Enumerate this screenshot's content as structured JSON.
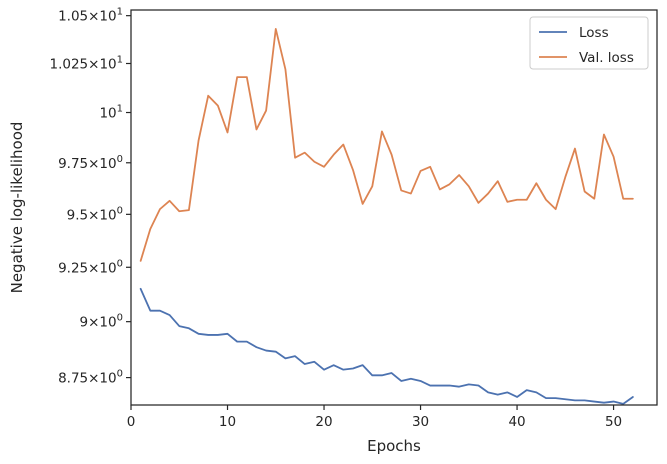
{
  "chart_data": {
    "type": "line",
    "xlabel": "Epochs",
    "ylabel": "Negative log-likelihood",
    "xlim": [
      0,
      54.5
    ],
    "ylim": [
      8.63,
      10.53
    ],
    "y_scale": "log",
    "grid": false,
    "legend_position": "top-right",
    "x_ticks": [
      0,
      10,
      20,
      30,
      40,
      50
    ],
    "y_ticks": [
      {
        "value": 8.75,
        "mantissa": "8.75",
        "times": "×",
        "base": "10",
        "exp": "0"
      },
      {
        "value": 9.0,
        "mantissa": "9",
        "times": "×",
        "base": "10",
        "exp": "0"
      },
      {
        "value": 9.25,
        "mantissa": "9.25",
        "times": "×",
        "base": "10",
        "exp": "0"
      },
      {
        "value": 9.5,
        "mantissa": "9.5",
        "times": "×",
        "base": "10",
        "exp": "0"
      },
      {
        "value": 9.75,
        "mantissa": "9.75",
        "times": "×",
        "base": "10",
        "exp": "0"
      },
      {
        "value": 10.0,
        "mantissa": "",
        "times": "",
        "base": "10",
        "exp": "1"
      },
      {
        "value": 10.25,
        "mantissa": "1.025",
        "times": "×",
        "base": "10",
        "exp": "1"
      },
      {
        "value": 10.5,
        "mantissa": "1.05",
        "times": "×",
        "base": "10",
        "exp": "1"
      }
    ],
    "x": [
      1,
      2,
      3,
      4,
      5,
      6,
      7,
      8,
      9,
      10,
      11,
      12,
      13,
      14,
      15,
      16,
      17,
      18,
      19,
      20,
      21,
      22,
      23,
      24,
      25,
      26,
      27,
      28,
      29,
      30,
      31,
      32,
      33,
      34,
      35,
      36,
      37,
      38,
      39,
      40,
      41,
      42,
      43,
      44,
      45,
      46,
      47,
      48,
      49,
      50,
      51,
      52
    ],
    "series": [
      {
        "name": "Loss",
        "color": "#4c72b0",
        "values": [
          9.15,
          9.05,
          9.05,
          9.03,
          8.98,
          8.97,
          8.945,
          8.94,
          8.94,
          8.945,
          8.91,
          8.91,
          8.885,
          8.87,
          8.865,
          8.835,
          8.845,
          8.81,
          8.82,
          8.785,
          8.805,
          8.785,
          8.79,
          8.805,
          8.76,
          8.76,
          8.77,
          8.735,
          8.745,
          8.735,
          8.715,
          8.715,
          8.715,
          8.71,
          8.72,
          8.715,
          8.685,
          8.675,
          8.685,
          8.665,
          8.695,
          8.685,
          8.66,
          8.66,
          8.655,
          8.65,
          8.65,
          8.645,
          8.64,
          8.645,
          8.635,
          8.665
        ]
      },
      {
        "name": "Val. loss",
        "color": "#dd8452",
        "values": [
          9.28,
          9.43,
          9.525,
          9.565,
          9.515,
          9.52,
          9.86,
          10.085,
          10.035,
          9.9,
          10.18,
          10.18,
          9.915,
          10.01,
          10.43,
          10.22,
          9.775,
          9.8,
          9.755,
          9.73,
          9.79,
          9.84,
          9.715,
          9.55,
          9.635,
          9.905,
          9.79,
          9.615,
          9.6,
          9.71,
          9.73,
          9.62,
          9.645,
          9.69,
          9.635,
          9.555,
          9.6,
          9.66,
          9.56,
          9.57,
          9.57,
          9.65,
          9.57,
          9.525,
          9.68,
          9.82,
          9.61,
          9.575,
          9.89,
          9.78,
          9.575,
          9.575
        ]
      }
    ]
  }
}
